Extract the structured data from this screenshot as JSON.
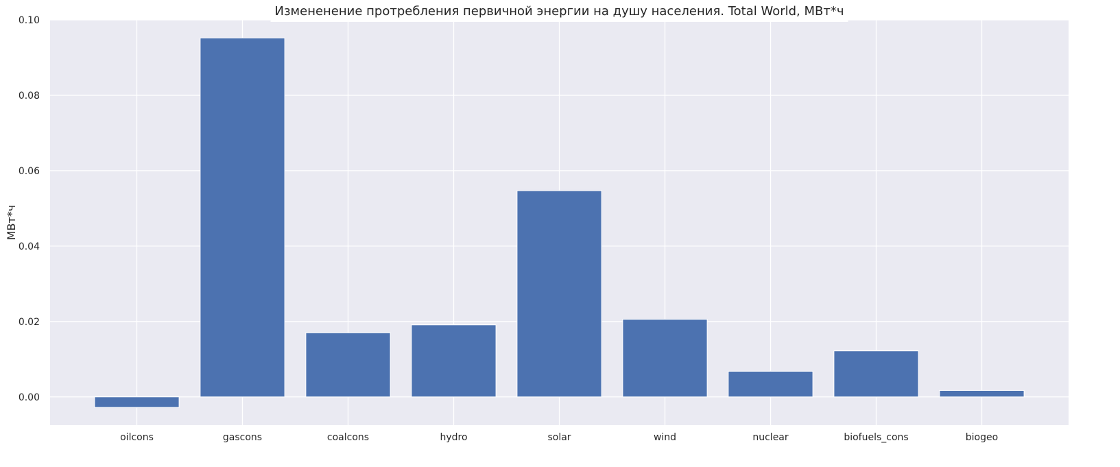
{
  "chart_data": {
    "type": "bar",
    "title": "Измененение протребления первичной энергии на душу населения. Total World, МВт*ч",
    "xlabel": "",
    "ylabel": "МВт*ч",
    "categories": [
      "oilcons",
      "gascons",
      "coalcons",
      "hydro",
      "solar",
      "wind",
      "nuclear",
      "biofuels_cons",
      "biogeo"
    ],
    "values": [
      -0.0028,
      0.0952,
      0.017,
      0.0191,
      0.0547,
      0.0206,
      0.0068,
      0.0122,
      0.0017
    ],
    "ylim": [
      -0.0075,
      0.1
    ],
    "yticks": [
      0.0,
      0.02,
      0.04,
      0.06,
      0.08,
      0.1
    ],
    "ytick_labels": [
      "0.00",
      "0.02",
      "0.04",
      "0.06",
      "0.08",
      "0.10"
    ],
    "grid": true,
    "colors": {
      "bar": "#4c72b0",
      "plot_background": "#eaeaf2",
      "grid": "#ffffff"
    }
  }
}
